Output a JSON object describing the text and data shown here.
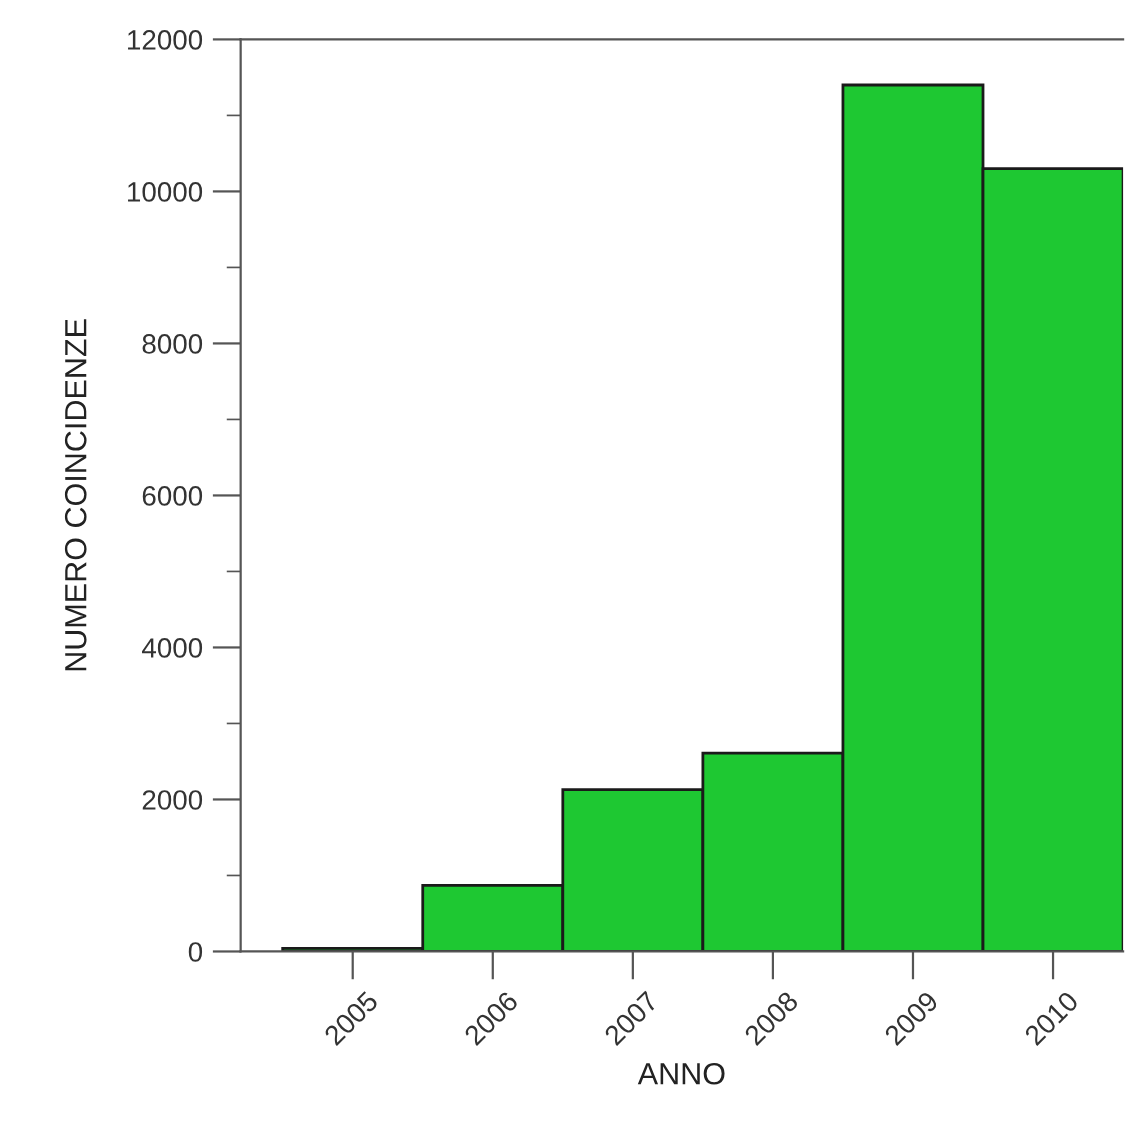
{
  "chart_data": {
    "type": "bar",
    "xlabel": "ANNO",
    "ylabel": "NUMERO COINCIDENZE",
    "categories": [
      "2005",
      "2006",
      "2007",
      "2008",
      "2009",
      "2010"
    ],
    "values": [
      40,
      870,
      2130,
      2610,
      11400,
      10300
    ],
    "color": "#1ec832",
    "ylim": [
      0,
      12000
    ],
    "yticks": [
      0,
      {
        "value": 1000,
        "label": null
      },
      2000,
      {
        "value": 3000,
        "label": null
      },
      4000,
      {
        "value": 5000,
        "label": null
      },
      6000,
      {
        "value": 7000,
        "label": null
      },
      8000,
      {
        "value": 9000,
        "label": null
      },
      10000,
      {
        "value": 11000,
        "label": null
      },
      12000
    ],
    "grid": false
  }
}
